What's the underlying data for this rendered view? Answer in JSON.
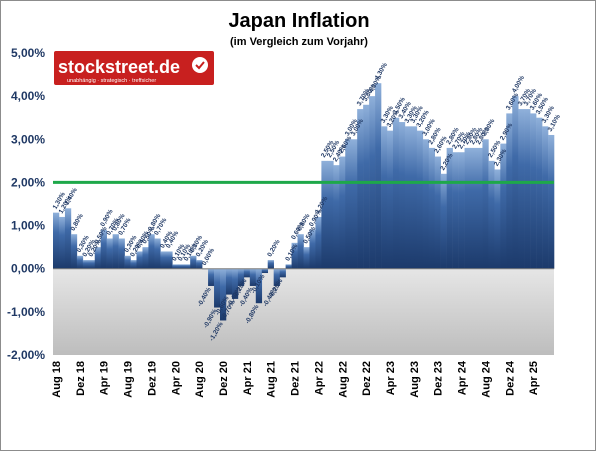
{
  "colors": {
    "bar_top": "#8fb0da",
    "bar_mid": "#3f6aa8",
    "bar_bottom": "#1c3a6b",
    "reference_line": "#1ea84a",
    "negative_area": "#c8c8c8",
    "brand_red": "#c8201f"
  },
  "logo": {
    "name": "stockstreet.de",
    "tagline": "unabhängig · strategisch · treffsicher",
    "icon": "check-icon"
  },
  "chart_data": {
    "type": "bar",
    "title": "Japan Inflation",
    "subtitle": "(im Vergleich zum Vorjahr)",
    "xlabel": "",
    "ylabel": "",
    "ylim": [
      -2.0,
      5.0
    ],
    "y_ticks": [
      "5,00%",
      "4,00%",
      "3,00%",
      "2,00%",
      "1,00%",
      "0,00%",
      "-1,00%",
      "-2,00%"
    ],
    "y_tick_values": [
      5,
      4,
      3,
      2,
      1,
      0,
      -1,
      -2
    ],
    "x_tick_labels": [
      "Aug 18",
      "Dez 18",
      "Apr 19",
      "Aug 19",
      "Dez 19",
      "Apr 20",
      "Aug 20",
      "Dez 20",
      "Apr 21",
      "Aug 21",
      "Dez 21",
      "Apr 22",
      "Aug 22",
      "Dez 22",
      "Apr 23",
      "Aug 23",
      "Dez 23",
      "Apr 24",
      "Aug 24",
      "Dez 24",
      "Apr 25"
    ],
    "x_tick_index": [
      0,
      4,
      8,
      12,
      16,
      20,
      24,
      28,
      32,
      36,
      40,
      44,
      48,
      52,
      56,
      60,
      64,
      68,
      72,
      76,
      80
    ],
    "reference_line": 2.0,
    "grid": false,
    "start_month": "Aug 18",
    "series": [
      {
        "name": "Inflation",
        "values": [
          1.3,
          1.2,
          1.4,
          0.8,
          0.3,
          0.2,
          0.2,
          0.5,
          0.9,
          0.7,
          0.8,
          0.7,
          0.3,
          0.2,
          0.4,
          0.5,
          0.8,
          0.7,
          0.4,
          0.4,
          0.1,
          0.1,
          0.1,
          0.3,
          0.2,
          0.0,
          -0.4,
          -0.9,
          -1.2,
          -0.6,
          -0.7,
          -0.4,
          -0.2,
          -0.4,
          -0.8,
          -0.1,
          0.2,
          -0.4,
          -0.2,
          0.1,
          0.6,
          0.8,
          0.5,
          0.9,
          1.2,
          2.5,
          2.5,
          2.4,
          2.6,
          3.0,
          3.0,
          3.7,
          3.8,
          4.0,
          4.3,
          3.3,
          3.2,
          3.5,
          3.4,
          3.3,
          3.3,
          3.2,
          3.0,
          2.8,
          2.6,
          2.2,
          2.8,
          2.7,
          2.7,
          2.8,
          2.8,
          2.8,
          3.0,
          2.5,
          2.3,
          2.9,
          3.6,
          4.0,
          3.7,
          3.7,
          3.6,
          3.5,
          3.3,
          3.1
        ]
      }
    ]
  }
}
